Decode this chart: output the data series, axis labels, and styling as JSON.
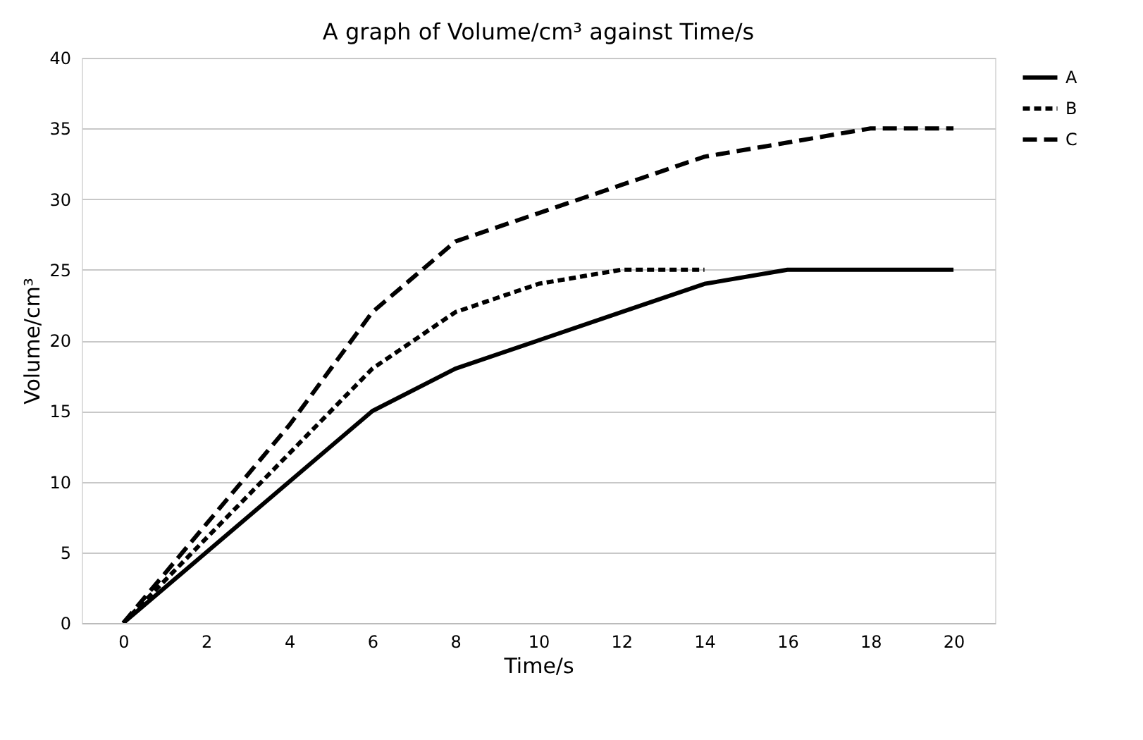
{
  "chart_data": {
    "type": "line",
    "title": "A graph of Volume/cm³ against Time/s",
    "xlabel": "Time/s",
    "ylabel": "Volume/cm³",
    "x": [
      0,
      2,
      4,
      6,
      8,
      10,
      12,
      14,
      16,
      18,
      20
    ],
    "series": [
      {
        "name": "A",
        "color": "#000000",
        "line_style": "solid",
        "values": [
          0,
          5,
          10,
          15,
          18,
          20,
          22,
          24,
          25,
          25,
          25
        ]
      },
      {
        "name": "B",
        "color": "#000000",
        "line_style": "dotted",
        "values": [
          0,
          6,
          12,
          18,
          22,
          24,
          25,
          25,
          null,
          null,
          null
        ]
      },
      {
        "name": "C",
        "color": "#000000",
        "line_style": "dashed",
        "values": [
          0,
          7,
          14,
          22,
          27,
          29,
          31,
          33,
          34,
          35,
          35
        ]
      }
    ],
    "xlim": [
      -1,
      21
    ],
    "xticks": [
      0,
      2,
      4,
      6,
      8,
      10,
      12,
      14,
      16,
      18,
      20
    ],
    "ylim": [
      0,
      40
    ],
    "yticks": [
      0,
      5,
      10,
      15,
      20,
      25,
      30,
      35,
      40
    ],
    "grid": "y",
    "legend": "right",
    "marker": "none"
  }
}
